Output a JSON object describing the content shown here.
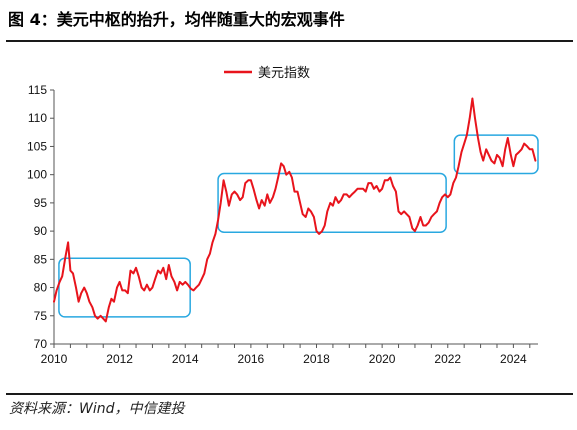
{
  "header": {
    "title": "图 4：美元中枢的抬升，均伴随重大的宏观事件"
  },
  "footer": {
    "source": "资料来源：Wind，中信建投"
  },
  "colors": {
    "series": "#e8141c",
    "box": "#29a8e0",
    "rule": "#1a1a1a",
    "axis": "#555555"
  },
  "chart_data": {
    "type": "line",
    "title": "",
    "xlabel": "",
    "ylabel": "",
    "xlim": [
      2010,
      2024.75
    ],
    "ylim": [
      70,
      115
    ],
    "y_ticks": [
      "70",
      "75",
      "80",
      "85",
      "90",
      "95",
      "100",
      "105",
      "110",
      "115"
    ],
    "x_ticks": [
      "2010",
      "2012",
      "2014",
      "2016",
      "2018",
      "2020",
      "2022",
      "2024"
    ],
    "legend": {
      "position": "top-center"
    },
    "grid": false,
    "series": [
      {
        "name": "美元指数",
        "x": [
          2010.0,
          2010.08,
          2010.17,
          2010.25,
          2010.35,
          2010.43,
          2010.5,
          2010.58,
          2010.67,
          2010.75,
          2010.83,
          2010.92,
          2011.0,
          2011.08,
          2011.17,
          2011.25,
          2011.33,
          2011.42,
          2011.5,
          2011.58,
          2011.67,
          2011.75,
          2011.83,
          2011.92,
          2012.0,
          2012.08,
          2012.17,
          2012.25,
          2012.33,
          2012.42,
          2012.5,
          2012.58,
          2012.67,
          2012.75,
          2012.83,
          2012.92,
          2013.0,
          2013.08,
          2013.17,
          2013.25,
          2013.33,
          2013.42,
          2013.5,
          2013.58,
          2013.67,
          2013.75,
          2013.83,
          2013.92,
          2014.0,
          2014.08,
          2014.17,
          2014.25,
          2014.33,
          2014.42,
          2014.5,
          2014.58,
          2014.67,
          2014.75,
          2014.83,
          2014.92,
          2015.0,
          2015.08,
          2015.17,
          2015.25,
          2015.33,
          2015.42,
          2015.5,
          2015.58,
          2015.67,
          2015.75,
          2015.83,
          2015.92,
          2016.0,
          2016.08,
          2016.17,
          2016.25,
          2016.33,
          2016.42,
          2016.5,
          2016.58,
          2016.67,
          2016.75,
          2016.83,
          2016.92,
          2017.0,
          2017.08,
          2017.17,
          2017.25,
          2017.33,
          2017.42,
          2017.5,
          2017.58,
          2017.67,
          2017.75,
          2017.83,
          2017.92,
          2018.0,
          2018.08,
          2018.17,
          2018.25,
          2018.33,
          2018.42,
          2018.5,
          2018.58,
          2018.67,
          2018.75,
          2018.83,
          2018.92,
          2019.0,
          2019.08,
          2019.17,
          2019.25,
          2019.33,
          2019.42,
          2019.5,
          2019.58,
          2019.67,
          2019.75,
          2019.83,
          2019.92,
          2020.0,
          2020.08,
          2020.17,
          2020.25,
          2020.33,
          2020.42,
          2020.5,
          2020.58,
          2020.67,
          2020.75,
          2020.83,
          2020.92,
          2021.0,
          2021.08,
          2021.17,
          2021.25,
          2021.33,
          2021.42,
          2021.5,
          2021.58,
          2021.67,
          2021.75,
          2021.83,
          2021.92,
          2022.0,
          2022.08,
          2022.17,
          2022.25,
          2022.33,
          2022.42,
          2022.5,
          2022.58,
          2022.67,
          2022.75,
          2022.83,
          2022.92,
          2023.0,
          2023.08,
          2023.17,
          2023.25,
          2023.33,
          2023.42,
          2023.5,
          2023.58,
          2023.67,
          2023.75,
          2023.83,
          2023.92,
          2024.0,
          2024.08,
          2024.17,
          2024.25,
          2024.33,
          2024.42,
          2024.5,
          2024.58,
          2024.67
        ],
        "values": [
          77.5,
          79.5,
          81.0,
          82.0,
          85.5,
          88.0,
          83.0,
          82.5,
          80.0,
          77.5,
          79.0,
          80.0,
          79.0,
          77.5,
          76.5,
          75.0,
          74.5,
          75.0,
          74.5,
          74.0,
          76.5,
          78.0,
          77.5,
          80.0,
          81.0,
          79.5,
          79.5,
          79.0,
          83.0,
          82.5,
          83.5,
          82.0,
          80.0,
          79.5,
          80.5,
          79.5,
          80.0,
          81.5,
          83.0,
          82.5,
          83.5,
          81.5,
          84.0,
          82.0,
          81.0,
          79.5,
          81.0,
          80.5,
          81.0,
          80.5,
          79.8,
          79.5,
          80.0,
          80.5,
          81.5,
          82.5,
          85.0,
          86.0,
          88.0,
          89.5,
          92.0,
          95.0,
          99.0,
          97.0,
          94.5,
          96.5,
          97.0,
          96.5,
          95.5,
          96.0,
          98.5,
          99.0,
          99.0,
          97.5,
          95.5,
          94.0,
          95.5,
          94.5,
          96.5,
          95.0,
          96.0,
          97.5,
          99.5,
          102.0,
          101.5,
          100.0,
          100.5,
          99.5,
          97.0,
          97.0,
          95.0,
          93.0,
          92.5,
          94.0,
          93.5,
          92.5,
          90.0,
          89.5,
          90.0,
          91.0,
          93.5,
          95.0,
          94.5,
          96.0,
          95.0,
          95.5,
          96.5,
          96.5,
          96.0,
          96.5,
          97.0,
          97.5,
          97.5,
          97.5,
          97.0,
          98.5,
          98.5,
          97.5,
          98.0,
          97.0,
          97.5,
          99.0,
          99.0,
          99.5,
          98.0,
          97.0,
          93.5,
          93.0,
          93.5,
          93.0,
          92.5,
          90.5,
          90.0,
          91.0,
          92.5,
          91.0,
          91.0,
          91.5,
          92.5,
          93.0,
          93.5,
          95.0,
          96.0,
          96.5,
          96.0,
          96.5,
          98.5,
          99.5,
          101.5,
          104.0,
          105.5,
          107.0,
          110.0,
          113.5,
          110.0,
          106.5,
          104.0,
          102.5,
          104.5,
          103.5,
          102.5,
          102.0,
          103.5,
          103.0,
          101.5,
          104.5,
          106.5,
          103.5,
          101.5,
          103.5,
          104.0,
          104.5,
          105.5,
          105.0,
          104.5,
          104.5,
          102.5
        ]
      }
    ]
  }
}
